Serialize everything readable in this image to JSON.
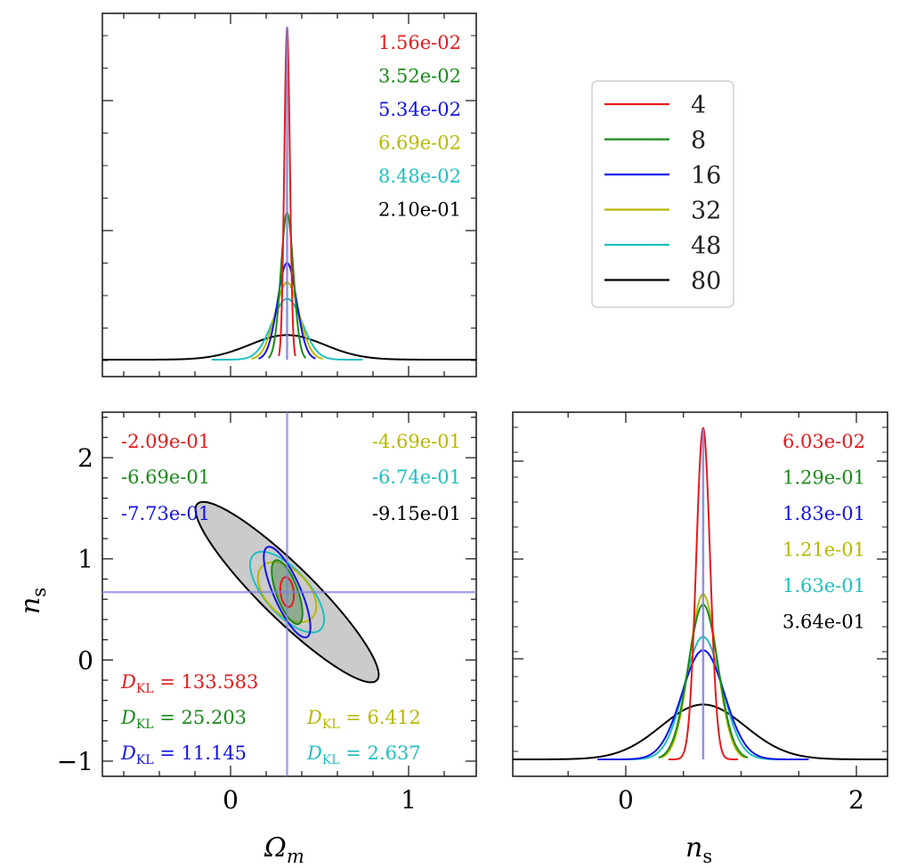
{
  "colors": {
    "4": "#e41a1c",
    "8": "#1a8a1a",
    "16": "#1212e6",
    "32": "#b8b800",
    "48": "#1fbfbf",
    "80": "#000000",
    "truth": "#7f7fdf"
  },
  "chart_data": [
    {
      "id": "omega_marginal",
      "type": "line",
      "title": "",
      "xlim": [
        -0.72,
        1.38
      ],
      "x_ticks": [
        0,
        1
      ],
      "x_tick_labels": [],
      "truth": 0.3175,
      "series": [
        {
          "name": "4",
          "mean": 0.3175,
          "sigma": 0.0156,
          "label": "1.56e-02",
          "half_width_sigmas": 3
        },
        {
          "name": "8",
          "mean": 0.3175,
          "sigma": 0.0352,
          "label": "3.52e-02",
          "half_width_sigmas": 3
        },
        {
          "name": "16",
          "mean": 0.3175,
          "sigma": 0.0534,
          "label": "5.34e-02",
          "half_width_sigmas": 3
        },
        {
          "name": "32",
          "mean": 0.3175,
          "sigma": 0.0669,
          "label": "6.69e-02",
          "half_width_sigmas": 3
        },
        {
          "name": "48",
          "mean": 0.3175,
          "sigma": 0.0848,
          "label": "8.48e-02",
          "half_width_sigmas": 5
        },
        {
          "name": "80",
          "mean": 0.3175,
          "sigma": 0.21,
          "label": "2.10e-01",
          "half_width_sigmas": 20
        }
      ]
    },
    {
      "id": "joint_omega_ns",
      "type": "scatter",
      "xlabel": "Ωm",
      "ylabel": "ns",
      "xlim": [
        -0.72,
        1.38
      ],
      "ylim": [
        -1.15,
        2.45
      ],
      "x_ticks": [
        0,
        1
      ],
      "x_tick_labels": [
        "0",
        "1"
      ],
      "y_ticks": [
        -1,
        0,
        1,
        2
      ],
      "y_tick_labels": [
        "−1",
        "0",
        "1",
        "2"
      ],
      "truth": [
        0.3175,
        0.6711
      ],
      "correlation_labels": [
        {
          "name": "4",
          "text": "-2.09e-01"
        },
        {
          "name": "8",
          "text": "-6.69e-01"
        },
        {
          "name": "16",
          "text": "-7.73e-01"
        },
        {
          "name": "32",
          "text": "-4.69e-01"
        },
        {
          "name": "48",
          "text": "-6.74e-01"
        },
        {
          "name": "80",
          "text": "-9.15e-01"
        }
      ],
      "dkl_labels": [
        {
          "name": "4",
          "symbol": "D",
          "sub": "KL",
          "value": "= 133.583"
        },
        {
          "name": "8",
          "symbol": "D",
          "sub": "KL",
          "value": "= 25.203"
        },
        {
          "name": "32",
          "symbol": "D",
          "sub": "KL",
          "value": "= 6.412"
        },
        {
          "name": "16",
          "symbol": "D",
          "sub": "KL",
          "value": "= 11.145"
        },
        {
          "name": "48",
          "symbol": "D",
          "sub": "KL",
          "value": "= 2.637"
        }
      ],
      "ellipses": [
        {
          "name": "80",
          "cx": 0.3175,
          "cy": 0.6711,
          "sx": 0.21,
          "sy": 0.364,
          "rho": -0.915,
          "k": 2.45,
          "filled": true
        },
        {
          "name": "48",
          "cx": 0.3175,
          "cy": 0.6711,
          "sx": 0.0848,
          "sy": 0.163,
          "rho": -0.674,
          "k": 2.45
        },
        {
          "name": "32",
          "cx": 0.3175,
          "cy": 0.6711,
          "sx": 0.0669,
          "sy": 0.121,
          "rho": -0.469,
          "k": 2.45
        },
        {
          "name": "16",
          "cx": 0.3175,
          "cy": 0.6711,
          "sx": 0.0534,
          "sy": 0.183,
          "rho": -0.773,
          "k": 2.45
        },
        {
          "name": "8",
          "cx": 0.3175,
          "cy": 0.6711,
          "sx": 0.0352,
          "sy": 0.129,
          "rho": -0.669,
          "k": 2.45,
          "filled": true
        },
        {
          "name": "4",
          "cx": 0.3175,
          "cy": 0.6711,
          "sx": 0.0156,
          "sy": 0.0603,
          "rho": -0.209,
          "k": 2.45
        }
      ]
    },
    {
      "id": "ns_marginal",
      "type": "line",
      "xlabel": "ns",
      "xlim": [
        -0.98,
        2.27
      ],
      "x_ticks": [
        0,
        2
      ],
      "x_tick_labels": [
        "0",
        "2"
      ],
      "truth": 0.6711,
      "series": [
        {
          "name": "4",
          "mean": 0.6711,
          "sigma": 0.0603,
          "label": "6.03e-02",
          "half_width_sigmas": 5
        },
        {
          "name": "8",
          "mean": 0.6711,
          "sigma": 0.129,
          "label": "1.29e-01",
          "half_width_sigmas": 3
        },
        {
          "name": "16",
          "mean": 0.6711,
          "sigma": 0.183,
          "label": "1.83e-01",
          "half_width_sigmas": 5
        },
        {
          "name": "32",
          "mean": 0.6711,
          "sigma": 0.121,
          "label": "1.21e-01",
          "half_width_sigmas": 3
        },
        {
          "name": "48",
          "mean": 0.6711,
          "sigma": 0.163,
          "label": "1.63e-01",
          "half_width_sigmas": 5.5
        },
        {
          "name": "80",
          "mean": 0.6711,
          "sigma": 0.364,
          "label": "3.64e-01",
          "half_width_sigmas": 9
        }
      ]
    }
  ],
  "legend": {
    "entries": [
      "4",
      "8",
      "16",
      "32",
      "48",
      "80"
    ]
  }
}
